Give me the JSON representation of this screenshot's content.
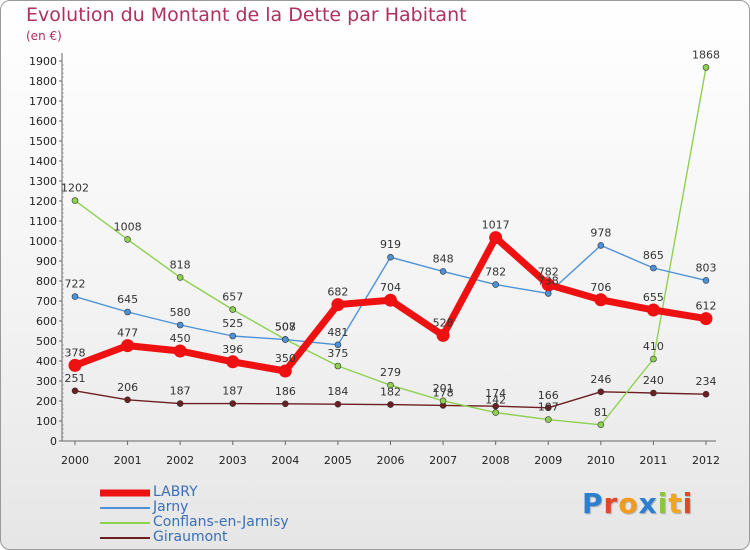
{
  "chart_data": {
    "type": "line",
    "title": "Evolution du Montant de la Dette par Habitant",
    "subtitle": "(en €)",
    "categories": [
      "2000",
      "2001",
      "2002",
      "2003",
      "2004",
      "2005",
      "2006",
      "2007",
      "2008",
      "2009",
      "2010",
      "2011",
      "2012"
    ],
    "ylim": [
      0,
      1900
    ],
    "yticks": [
      0,
      100,
      200,
      300,
      400,
      500,
      600,
      700,
      800,
      900,
      1000,
      1100,
      1200,
      1300,
      1400,
      1500,
      1600,
      1700,
      1800,
      1900
    ],
    "grid": false,
    "legend_placement": "bottom-left",
    "series": [
      {
        "name": "LABRY",
        "color": "#ee1111",
        "values": [
          378,
          477,
          450,
          396,
          350,
          682,
          704,
          528,
          1017,
          782,
          706,
          655,
          612
        ]
      },
      {
        "name": "Jarny",
        "color": "#4d92d6",
        "values": [
          722,
          645,
          580,
          525,
          507,
          481,
          919,
          848,
          782,
          738,
          978,
          865,
          803
        ]
      },
      {
        "name": "Conflans-en-Jarnisy",
        "color": "#8ed14f",
        "values": [
          1202,
          1008,
          818,
          657,
          508,
          375,
          279,
          201,
          142,
          107,
          81,
          410,
          1868
        ]
      },
      {
        "name": "Giraumont",
        "color": "#6b1f22",
        "values": [
          251,
          206,
          187,
          187,
          186,
          184,
          182,
          178,
          174,
          166,
          246,
          240,
          234
        ]
      }
    ]
  },
  "logo": {
    "text": "Proxiti",
    "letters": [
      "P",
      "r",
      "o",
      "x",
      "i",
      "t",
      "i"
    ],
    "colors": [
      "#2f7fd0",
      "#e0472b",
      "#f29a1c",
      "#2e7fd0",
      "#8cc63f",
      "#f2a61c",
      "#e0472b"
    ]
  }
}
